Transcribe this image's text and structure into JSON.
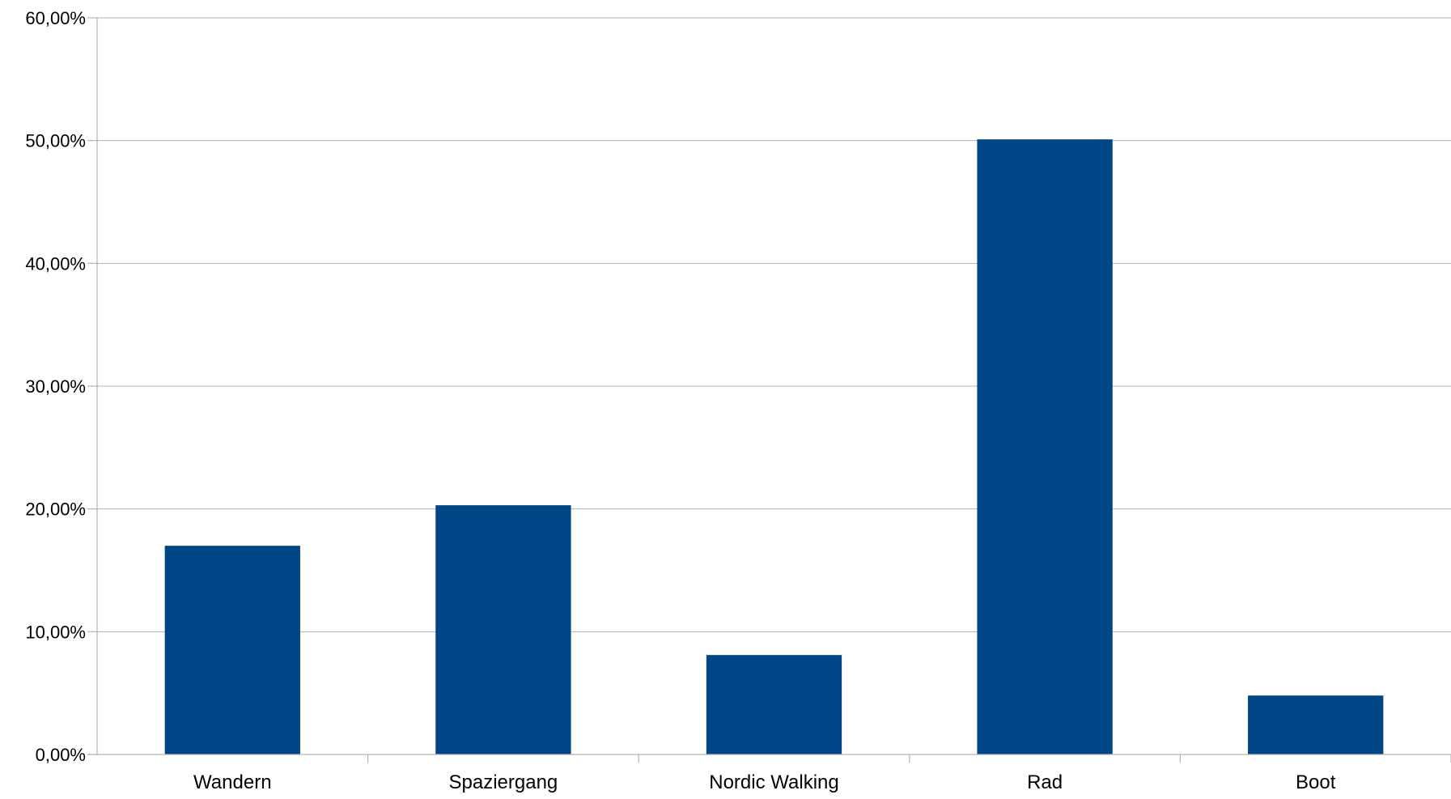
{
  "chart_data": {
    "type": "bar",
    "title": "",
    "xlabel": "",
    "ylabel": "",
    "categories": [
      "Wandern",
      "Spaziergang",
      "Nordic Walking",
      "Rad",
      "Boot"
    ],
    "values": [
      17.0,
      20.3,
      8.1,
      50.1,
      4.8
    ],
    "ylim": [
      0,
      60
    ],
    "yticks": [
      0,
      10,
      20,
      30,
      40,
      50,
      60
    ],
    "ytick_labels": [
      "0,00%",
      "10,00%",
      "20,00%",
      "30,00%",
      "40,00%",
      "50,00%",
      "60,00%"
    ],
    "grid": "horizontal",
    "legend": "none",
    "bar_color": "#004586"
  }
}
